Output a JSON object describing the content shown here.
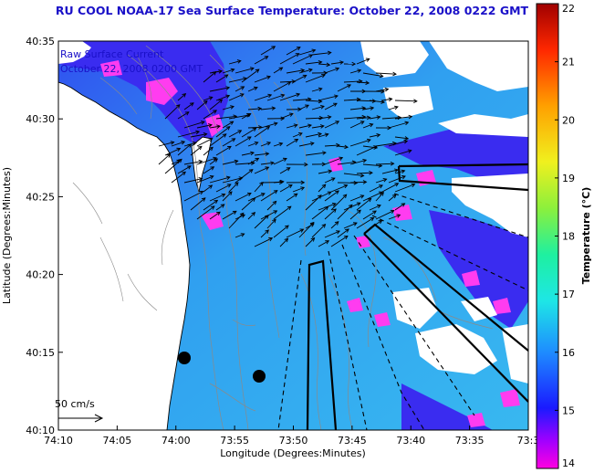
{
  "title": "RU COOL  NOAA-17  Sea Surface Temperature:  October 22, 2008 0222 GMT",
  "annotation": {
    "line1": "Raw Surface Current",
    "line2": "October 22, 2008 0200 GMT",
    "scale_label": "50 cm/s"
  },
  "axes": {
    "xlabel": "Longitude (Degrees:Minutes)",
    "ylabel": "Latitude (Degrees:Minutes)",
    "xticks": [
      "74:10",
      "74:05",
      "74:00",
      "73:55",
      "73:50",
      "73:45",
      "73:40",
      "73:35",
      "73:3"
    ],
    "yticks": [
      "40:35",
      "40:30",
      "40:25",
      "40:20",
      "40:15",
      "40:10"
    ]
  },
  "colorbar": {
    "label": "Temperature (°C)",
    "min": 14,
    "max": 22,
    "ticks": [
      "22",
      "21",
      "20",
      "19",
      "18",
      "17",
      "16",
      "15",
      "14"
    ]
  },
  "colors": {
    "title": "#1a10c8",
    "land": "#ffffff",
    "water": "#3aa8f0",
    "cold_patch": "#ff3cf0"
  }
}
